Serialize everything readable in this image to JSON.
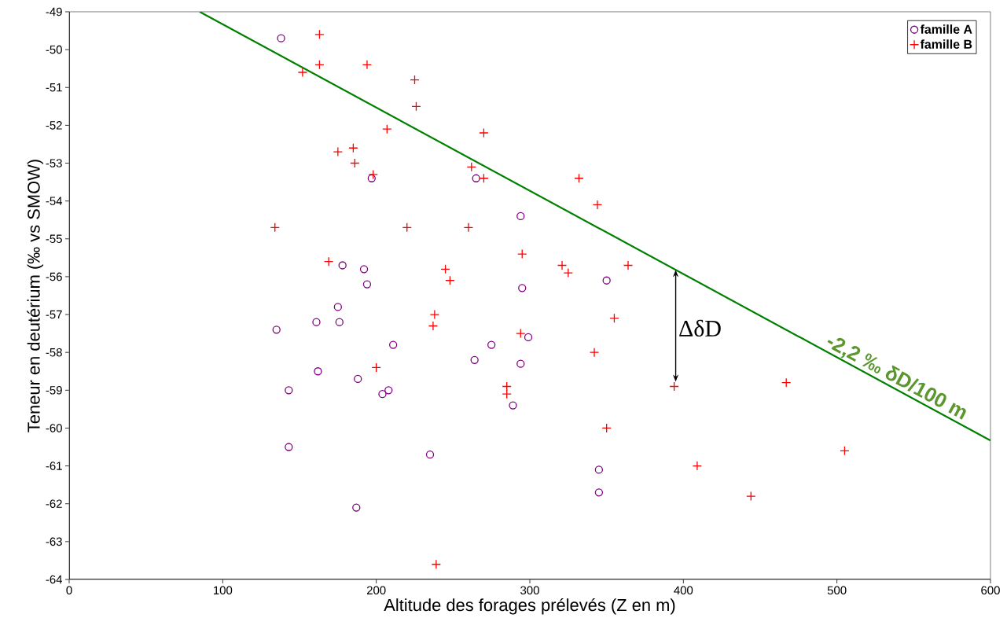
{
  "chart_data": {
    "type": "scatter",
    "xlabel": "Altitude des forages prélevés (Z en m)",
    "ylabel": "Teneur en deutérium (‰ vs SMOW)",
    "xlim": [
      0,
      600
    ],
    "ylim": [
      -64,
      -49
    ],
    "xticks": [
      0,
      100,
      200,
      300,
      400,
      500,
      600
    ],
    "yticks": [
      -64,
      -63,
      -62,
      -61,
      -60,
      -59,
      -58,
      -57,
      -56,
      -55,
      -54,
      -53,
      -52,
      -51,
      -50,
      -49
    ],
    "grid": false,
    "legend": "top right",
    "series": [
      {
        "name": "famille A",
        "color": "#800080",
        "marker": "circle",
        "x": [
          138,
          197,
          265,
          294,
          178,
          192,
          194,
          350,
          295,
          175,
          161,
          176,
          135,
          211,
          275,
          299,
          264,
          294,
          162,
          188,
          143,
          204,
          208,
          289,
          143,
          235,
          345,
          345,
          187
        ],
        "values": [
          -49.7,
          -53.4,
          -53.4,
          -54.4,
          -55.7,
          -55.8,
          -56.2,
          -56.1,
          -56.3,
          -56.8,
          -57.2,
          -57.2,
          -57.4,
          -57.8,
          -57.8,
          -57.6,
          -58.2,
          -58.3,
          -58.5,
          -58.7,
          -59.0,
          -59.1,
          -59.0,
          -59.4,
          -60.5,
          -60.7,
          -61.1,
          -61.7,
          -62.1
        ]
      },
      {
        "name": "famille B",
        "color": "#ff0000",
        "marker": "cross",
        "x": [
          163,
          163,
          194,
          152,
          225,
          226,
          207,
          270,
          175,
          185,
          186,
          198,
          262,
          270,
          332,
          344,
          134,
          220,
          260,
          295,
          169,
          245,
          248,
          321,
          325,
          364,
          238,
          237,
          294,
          355,
          342,
          200,
          285,
          285,
          394,
          467,
          350,
          409,
          444,
          505,
          239
        ],
        "values": [
          -49.6,
          -50.4,
          -50.4,
          -50.6,
          -50.8,
          -51.5,
          -52.1,
          -52.2,
          -52.7,
          -52.6,
          -53.0,
          -53.3,
          -53.1,
          -53.4,
          -53.4,
          -54.1,
          -54.7,
          -54.7,
          -54.7,
          -55.4,
          -55.6,
          -55.8,
          -56.1,
          -55.7,
          -55.9,
          -55.7,
          -57.0,
          -57.3,
          -57.5,
          -57.1,
          -58.0,
          -58.4,
          -58.9,
          -59.1,
          -58.9,
          -58.8,
          -60.0,
          -61.0,
          -61.8,
          -60.6,
          -63.6
        ]
      },
      {
        "type": "line",
        "color": "#008000",
        "marker": "none",
        "line_style": "solid",
        "x": [
          85,
          600
        ],
        "values": [
          -49.0,
          -60.33
        ]
      }
    ],
    "annotations": [
      {
        "text": "ΔδD",
        "x": 395,
        "y": -58.9
      },
      "-2,2 ‰ δD/100 m"
    ]
  }
}
